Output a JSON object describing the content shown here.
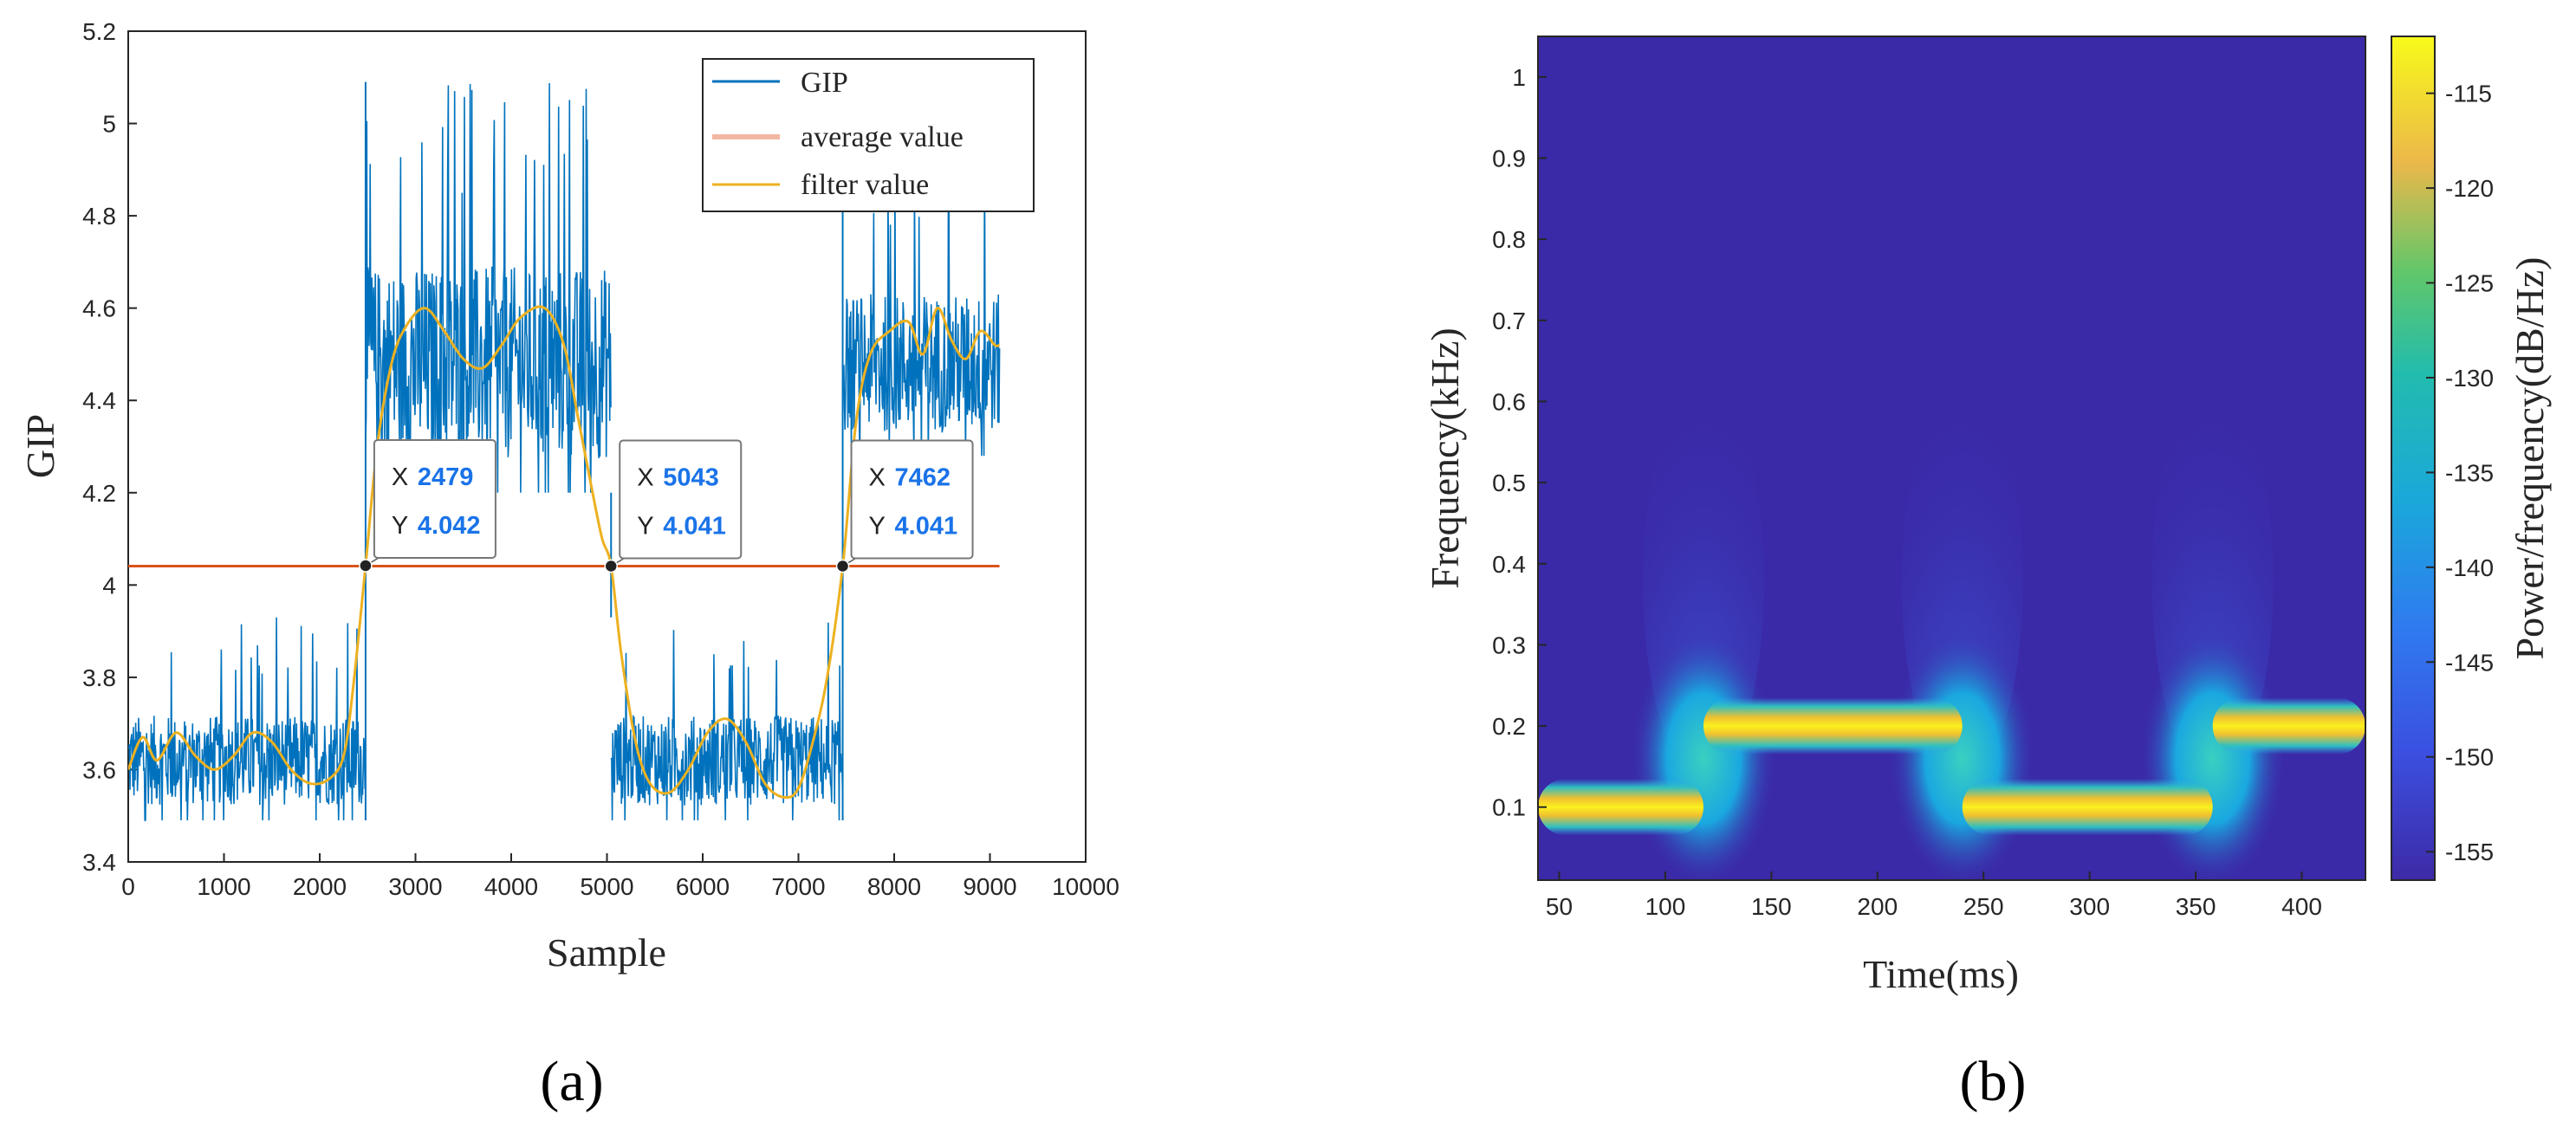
{
  "chart_data": [
    {
      "panel": "(a)",
      "type": "line",
      "xlabel": "Sample",
      "ylabel": "GIP",
      "xlim": [
        0,
        10000
      ],
      "ylim": [
        3.4,
        5.2
      ],
      "xticks": [
        0,
        1000,
        2000,
        3000,
        4000,
        5000,
        6000,
        7000,
        8000,
        9000,
        10000
      ],
      "yticks": [
        3.4,
        3.6,
        3.8,
        4,
        4.2,
        4.4,
        4.6,
        4.8,
        5,
        5.2
      ],
      "xtick_labels": [
        "0",
        "1000",
        "2000",
        "3000",
        "4000",
        "5000",
        "6000",
        "7000",
        "8000",
        "9000",
        "10000"
      ],
      "ytick_labels": [
        "3.4",
        "3.6",
        "3.8",
        "4",
        "4.2",
        "4.4",
        "4.6",
        "4.8",
        "5",
        "5.2"
      ],
      "legend": [
        "GIP",
        "average value",
        "filter value"
      ],
      "colors": {
        "gip": "#0072bd",
        "average": "#d95319",
        "filter": "#edb120"
      },
      "series": [
        {
          "name": "GIP",
          "segments": [
            {
              "x_start": 0,
              "x_end": 2479,
              "level": 3.62,
              "min": 3.49,
              "max": 3.93
            },
            {
              "x_start": 2479,
              "x_end": 5043,
              "level": 4.48,
              "min": 4.2,
              "max": 5.09
            },
            {
              "x_start": 5043,
              "x_end": 7462,
              "level": 3.62,
              "min": 3.49,
              "max": 3.93
            },
            {
              "x_start": 7462,
              "x_end": 9100,
              "level": 4.48,
              "min": 4.28,
              "max": 4.98
            }
          ]
        },
        {
          "name": "average value",
          "x": [
            0,
            9100
          ],
          "y": [
            4.041,
            4.041
          ]
        },
        {
          "name": "filter value",
          "x": [
            0,
            150,
            300,
            500,
            700,
            900,
            1100,
            1300,
            1500,
            1700,
            1900,
            2100,
            2250,
            2350,
            2479,
            2600,
            2750,
            2900,
            3100,
            3300,
            3500,
            3700,
            3900,
            4100,
            4350,
            4550,
            4700,
            4850,
            4950,
            5043,
            5150,
            5300,
            5450,
            5650,
            5850,
            6050,
            6250,
            6450,
            6650,
            6850,
            7000,
            7150,
            7300,
            7462,
            7600,
            7750,
            7950,
            8150,
            8300,
            8450,
            8600,
            8750,
            8900,
            9050,
            9100
          ],
          "y": [
            3.6,
            3.67,
            3.62,
            3.68,
            3.63,
            3.6,
            3.63,
            3.68,
            3.66,
            3.6,
            3.57,
            3.58,
            3.63,
            3.78,
            4.042,
            4.3,
            4.48,
            4.56,
            4.6,
            4.55,
            4.49,
            4.47,
            4.52,
            4.58,
            4.6,
            4.52,
            4.36,
            4.2,
            4.1,
            4.041,
            3.85,
            3.66,
            3.57,
            3.55,
            3.6,
            3.68,
            3.71,
            3.66,
            3.57,
            3.54,
            3.56,
            3.66,
            3.8,
            4.041,
            4.35,
            4.5,
            4.55,
            4.57,
            4.5,
            4.6,
            4.53,
            4.49,
            4.55,
            4.52,
            4.52
          ]
        }
      ],
      "datatips": [
        {
          "x_label": "X",
          "x_value": "2479",
          "y_label": "Y",
          "y_value": "4.042",
          "x": 2479,
          "y": 4.042
        },
        {
          "x_label": "X",
          "x_value": "5043",
          "y_label": "Y",
          "y_value": "4.041",
          "x": 5043,
          "y": 4.041
        },
        {
          "x_label": "X",
          "x_value": "7462",
          "y_label": "Y",
          "y_value": "4.041",
          "x": 7462,
          "y": 4.041
        }
      ]
    },
    {
      "panel": "(b)",
      "type": "heatmap",
      "xlabel": "Time(ms)",
      "ylabel": "Frequency(kHz)",
      "xlim": [
        40,
        430
      ],
      "ylim": [
        0.01,
        1.05
      ],
      "xticks": [
        50,
        100,
        150,
        200,
        250,
        300,
        350,
        400
      ],
      "yticks": [
        0.1,
        0.2,
        0.3,
        0.4,
        0.5,
        0.6,
        0.7,
        0.8,
        0.9,
        1
      ],
      "xtick_labels": [
        "50",
        "100",
        "150",
        "200",
        "250",
        "300",
        "350",
        "400"
      ],
      "ytick_labels": [
        "0.1",
        "0.2",
        "0.3",
        "0.4",
        "0.5",
        "0.6",
        "0.7",
        "0.8",
        "0.9",
        "1"
      ],
      "colorbar": {
        "label": "Power/frequency(dB/Hz)",
        "range": [
          -156.5,
          -112
        ],
        "ticks": [
          -115,
          -120,
          -125,
          -130,
          -135,
          -140,
          -145,
          -150,
          -155
        ],
        "tick_labels": [
          "-115",
          "-120",
          "-125",
          "-130",
          "-135",
          "-140",
          "-145",
          "-150",
          "-155"
        ]
      },
      "bands": [
        {
          "t_start": 40,
          "t_end": 118,
          "freq_khz": 0.1,
          "power_db": -113
        },
        {
          "t_start": 118,
          "t_end": 240,
          "freq_khz": 0.2,
          "power_db": -113
        },
        {
          "t_start": 240,
          "t_end": 358,
          "freq_khz": 0.1,
          "power_db": -113
        },
        {
          "t_start": 358,
          "t_end": 430,
          "freq_khz": 0.2,
          "power_db": -113
        }
      ],
      "transitions_ms": [
        118,
        240,
        358
      ],
      "background_power_db": -155
    }
  ],
  "panel_labels": {
    "a": "(a)",
    "b": "(b)"
  }
}
